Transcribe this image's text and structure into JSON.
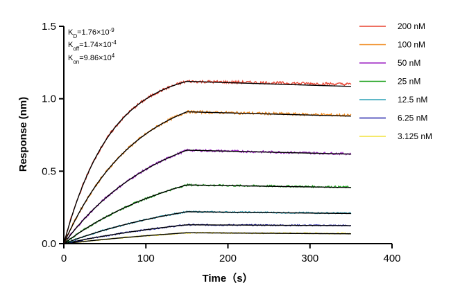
{
  "chart_data": {
    "type": "line",
    "xlabel": "Time（s）",
    "ylabel": "Response (nm)",
    "xlim": [
      0,
      400
    ],
    "ylim": [
      0,
      1.5
    ],
    "x_ticks": [
      0,
      100,
      200,
      300,
      400
    ],
    "y_ticks": [
      0.0,
      0.5,
      1.0,
      1.5
    ],
    "x_tick_labels": [
      "0",
      "100",
      "200",
      "300",
      "400"
    ],
    "y_tick_labels": [
      "0.0",
      "0.5",
      "1.0",
      "1.5"
    ],
    "grid": false,
    "legend_position": "top-right",
    "association_end": 150,
    "dissociation_end": 350,
    "annotations": {
      "kd": {
        "k": "K",
        "sub": "D",
        "val": "=1.76×10",
        "sup": "-9"
      },
      "koff": {
        "k": "K",
        "sub": "off",
        "val": "=1.74×10",
        "sup": "-4"
      },
      "kon": {
        "k": "K",
        "sub": "on",
        "val": "=9.86×10",
        "sup": "4"
      }
    },
    "series": [
      {
        "name": "200 nM",
        "color": "#e8412f",
        "plateau": 1.12,
        "end": 1.1,
        "fit_end": 1.085,
        "kobs": 0.0175
      },
      {
        "name": "100 nM",
        "color": "#f08a1e",
        "plateau": 0.91,
        "end": 0.885,
        "fit_end": 0.88,
        "kobs": 0.0115
      },
      {
        "name": "50 nM",
        "color": "#9b1fc2",
        "plateau": 0.645,
        "end": 0.62,
        "fit_end": 0.618,
        "kobs": 0.0085
      },
      {
        "name": "25 nM",
        "color": "#1aa01a",
        "plateau": 0.405,
        "end": 0.39,
        "fit_end": 0.387,
        "kobs": 0.0065
      },
      {
        "name": "12.5 nM",
        "color": "#2aa0b6",
        "plateau": 0.22,
        "end": 0.21,
        "fit_end": 0.208,
        "kobs": 0.0055
      },
      {
        "name": "6.25 nM",
        "color": "#1f1fa8",
        "plateau": 0.13,
        "end": 0.125,
        "fit_end": 0.124,
        "kobs": 0.0045
      },
      {
        "name": "3.125 nM",
        "color": "#f2e23a",
        "plateau": 0.075,
        "end": 0.07,
        "fit_end": 0.068,
        "kobs": 0.0035
      }
    ]
  }
}
